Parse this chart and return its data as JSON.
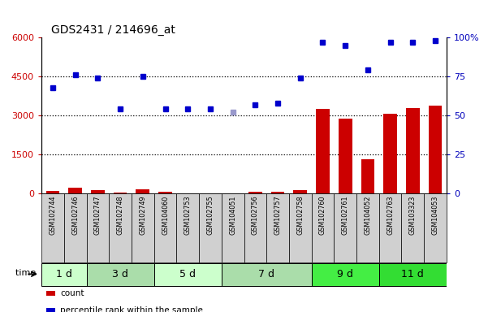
{
  "title": "GDS2431 / 214696_at",
  "samples": [
    "GSM102744",
    "GSM102746",
    "GSM102747",
    "GSM102748",
    "GSM102749",
    "GSM104060",
    "GSM102753",
    "GSM102755",
    "GSM104051",
    "GSM102756",
    "GSM102757",
    "GSM102758",
    "GSM102760",
    "GSM102761",
    "GSM104052",
    "GSM102763",
    "GSM103323",
    "GSM104053"
  ],
  "time_groups": [
    {
      "label": "1 d",
      "start": 0,
      "end": 2,
      "color": "#ccffcc"
    },
    {
      "label": "3 d",
      "start": 2,
      "end": 5,
      "color": "#aaddaa"
    },
    {
      "label": "5 d",
      "start": 5,
      "end": 8,
      "color": "#ccffcc"
    },
    {
      "label": "7 d",
      "start": 8,
      "end": 12,
      "color": "#aaddaa"
    },
    {
      "label": "9 d",
      "start": 12,
      "end": 15,
      "color": "#44ee44"
    },
    {
      "label": "11 d",
      "start": 15,
      "end": 18,
      "color": "#33dd33"
    }
  ],
  "bar_values": [
    100,
    230,
    130,
    30,
    150,
    50,
    15,
    10,
    10,
    70,
    70,
    130,
    3250,
    2870,
    1330,
    3060,
    3270,
    3380
  ],
  "bar_absent": [
    false,
    false,
    false,
    false,
    false,
    false,
    false,
    false,
    false,
    false,
    false,
    false,
    false,
    false,
    false,
    false,
    false,
    false
  ],
  "dot_values": [
    68,
    76,
    74,
    54,
    75,
    54,
    54,
    54,
    52,
    57,
    58,
    74,
    97,
    95,
    79,
    97,
    97,
    98
  ],
  "dot_absent": [
    false,
    false,
    false,
    false,
    false,
    false,
    false,
    false,
    true,
    false,
    false,
    false,
    false,
    false,
    false,
    false,
    false,
    false
  ],
  "ylim_left": [
    0,
    6000
  ],
  "ylim_right": [
    0,
    100
  ],
  "yticks_left": [
    0,
    1500,
    3000,
    4500,
    6000
  ],
  "yticks_right": [
    0,
    25,
    50,
    75,
    100
  ],
  "bar_color": "#cc0000",
  "dot_color": "#0000cc",
  "dot_absent_color": "#9999cc",
  "bar_absent_color": "#ffaaaa",
  "xlabel_color": "#cc0000",
  "ylabel_right_color": "#0000bb",
  "plot_bg_color": "#ffffff",
  "xticklabel_bg": "#cccccc"
}
